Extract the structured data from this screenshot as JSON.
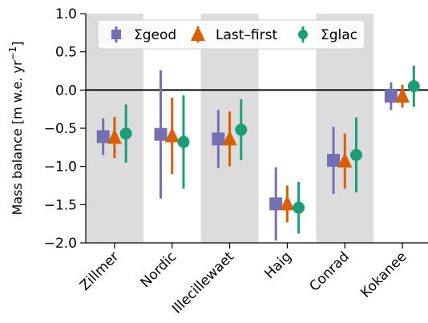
{
  "chart_data": {
    "type": "errorbar",
    "ylabel": "Mass balance [m w.e. yr$^{-1}$]",
    "ylabel_parts": {
      "main": "Mass balance [m w.e. yr",
      "exp": "−1",
      "close": "]"
    },
    "ylim": [
      -2.0,
      1.0
    ],
    "yticks": [
      1.0,
      0.5,
      0.0,
      -0.5,
      -1.0,
      -1.5,
      -2.0
    ],
    "ytick_labels": [
      "1.0",
      "0.5",
      "0.0",
      "−0.5",
      "−1.0",
      "−1.5",
      "−2.0"
    ],
    "zero_line": true,
    "shaded_bands": [
      "Zillmer",
      "Illecillewaet",
      "Conrad"
    ],
    "band_color": "#dcdcdc",
    "categories": [
      "Zillmer",
      "Nordic",
      "Illecillewaet",
      "Haig",
      "Conrad",
      "Kokanee"
    ],
    "legend": {
      "placement": "top-left",
      "entries": [
        "Σgeod",
        "Last–first",
        "Σglac"
      ]
    },
    "series": [
      {
        "name": "Σgeod",
        "marker": "square",
        "color": "#7570b3",
        "values": [
          -0.61,
          -0.58,
          -0.64,
          -1.49,
          -0.92,
          -0.08
        ],
        "lower": [
          -0.85,
          -1.42,
          -1.02,
          -1.97,
          -1.36,
          -0.26
        ],
        "upper": [
          -0.37,
          0.26,
          -0.26,
          -1.01,
          -0.48,
          0.1
        ]
      },
      {
        "name": "Last–first",
        "marker": "triangle",
        "color": "#d95f02",
        "values": [
          -0.62,
          -0.6,
          -0.64,
          -1.49,
          -0.93,
          -0.08
        ],
        "lower": [
          -0.89,
          -1.1,
          -1.0,
          -1.73,
          -1.29,
          -0.23
        ],
        "upper": [
          -0.35,
          -0.1,
          -0.28,
          -1.25,
          -0.57,
          0.07
        ]
      },
      {
        "name": "Σglac",
        "marker": "circle",
        "color": "#1b9e77",
        "values": [
          -0.57,
          -0.68,
          -0.52,
          -1.54,
          -0.85,
          0.05
        ],
        "lower": [
          -0.95,
          -1.29,
          -0.92,
          -1.88,
          -1.34,
          -0.22
        ],
        "upper": [
          -0.19,
          -0.07,
          -0.12,
          -1.2,
          -0.36,
          0.32
        ]
      }
    ]
  }
}
